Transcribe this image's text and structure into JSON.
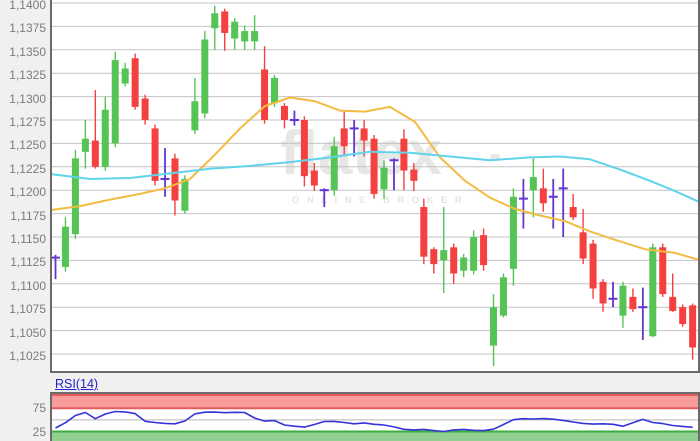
{
  "watermark": {
    "brand": "flatex",
    "tagline": "ONLINE BROKER"
  },
  "indicator": {
    "label": "RSI(14)",
    "period": 14,
    "levels": [
      {
        "label": "75",
        "value": 75
      },
      {
        "label": "25",
        "value": 25
      }
    ]
  },
  "colors": {
    "up": "#55c455",
    "down": "#f54040",
    "doji": "#6334d1",
    "ma_fast": "#f2bb42",
    "ma_slow": "#5fd4ea",
    "rsi_line": "#3434d8",
    "band_red_fill": "#f79b9b",
    "band_red_edge": "#e25c5c",
    "band_green_fill": "#92d092",
    "band_green_edge": "#3fae3f",
    "mid_line": "#b8b8b8",
    "grid": "#c3c3c3",
    "axis_text": "#7b7b7b",
    "border": "#6a6a6a",
    "plot_bg": "#ffffff",
    "page_bg": "#f1f0ee"
  },
  "chart_data": {
    "type": "candlestick",
    "title": "",
    "grid": "horizontal-only",
    "ylim": [
      1.1008,
      1.1405
    ],
    "y_axis": [
      {
        "label": "1,1400",
        "value": 1.14
      },
      {
        "label": "1,1375",
        "value": 1.1375
      },
      {
        "label": "1,1350",
        "value": 1.135
      },
      {
        "label": "1,1325",
        "value": 1.1325
      },
      {
        "label": "1,1300",
        "value": 1.13
      },
      {
        "label": "1,1275",
        "value": 1.1275
      },
      {
        "label": "1,1250",
        "value": 1.125
      },
      {
        "label": "1,1225",
        "value": 1.1225
      },
      {
        "label": "1,1200",
        "value": 1.12
      },
      {
        "label": "1,1175",
        "value": 1.1175
      },
      {
        "label": "1,1150",
        "value": 1.115
      },
      {
        "label": "1,1125",
        "value": 1.1125
      },
      {
        "label": "1,1100",
        "value": 1.11
      },
      {
        "label": "1,1075",
        "value": 1.1075
      },
      {
        "label": "1,1050",
        "value": 1.105
      },
      {
        "label": "1,1025",
        "value": 1.1025
      }
    ],
    "candles": [
      {
        "t": "doji",
        "o": 1.1128,
        "h": 1.1131,
        "l": 1.1105,
        "c": 1.1128
      },
      {
        "t": "up",
        "o": 1.1118,
        "h": 1.1171,
        "l": 1.1113,
        "c": 1.1161
      },
      {
        "t": "up",
        "o": 1.1153,
        "h": 1.1243,
        "l": 1.1148,
        "c": 1.1234
      },
      {
        "t": "up",
        "o": 1.1241,
        "h": 1.1275,
        "l": 1.1223,
        "c": 1.1255
      },
      {
        "t": "down",
        "o": 1.1253,
        "h": 1.1307,
        "l": 1.1223,
        "c": 1.1225
      },
      {
        "t": "up",
        "o": 1.1225,
        "h": 1.13,
        "l": 1.1221,
        "c": 1.1286
      },
      {
        "t": "up",
        "o": 1.125,
        "h": 1.1348,
        "l": 1.1246,
        "c": 1.1339
      },
      {
        "t": "up",
        "o": 1.1314,
        "h": 1.1336,
        "l": 1.1311,
        "c": 1.133
      },
      {
        "t": "down",
        "o": 1.1341,
        "h": 1.1346,
        "l": 1.1286,
        "c": 1.1289
      },
      {
        "t": "down",
        "o": 1.1298,
        "h": 1.1302,
        "l": 1.127,
        "c": 1.1275
      },
      {
        "t": "down",
        "o": 1.1266,
        "h": 1.127,
        "l": 1.1205,
        "c": 1.121
      },
      {
        "t": "doji",
        "o": 1.1212,
        "h": 1.1245,
        "l": 1.1193,
        "c": 1.1212
      },
      {
        "t": "down",
        "o": 1.1234,
        "h": 1.1239,
        "l": 1.1173,
        "c": 1.1189
      },
      {
        "t": "up",
        "o": 1.1178,
        "h": 1.1216,
        "l": 1.1175,
        "c": 1.1212
      },
      {
        "t": "up",
        "o": 1.1264,
        "h": 1.132,
        "l": 1.126,
        "c": 1.1295
      },
      {
        "t": "up",
        "o": 1.1282,
        "h": 1.137,
        "l": 1.1277,
        "c": 1.1361
      },
      {
        "t": "up",
        "o": 1.1373,
        "h": 1.1397,
        "l": 1.135,
        "c": 1.1389
      },
      {
        "t": "down",
        "o": 1.1391,
        "h": 1.1394,
        "l": 1.1349,
        "c": 1.1368
      },
      {
        "t": "up",
        "o": 1.1362,
        "h": 1.1384,
        "l": 1.135,
        "c": 1.138
      },
      {
        "t": "up",
        "o": 1.1359,
        "h": 1.1376,
        "l": 1.135,
        "c": 1.137
      },
      {
        "t": "up",
        "o": 1.1359,
        "h": 1.1387,
        "l": 1.135,
        "c": 1.137
      },
      {
        "t": "down",
        "o": 1.1329,
        "h": 1.1354,
        "l": 1.1271,
        "c": 1.1275
      },
      {
        "t": "up",
        "o": 1.1293,
        "h": 1.1323,
        "l": 1.1289,
        "c": 1.132
      },
      {
        "t": "down",
        "o": 1.129,
        "h": 1.1293,
        "l": 1.1266,
        "c": 1.1275
      },
      {
        "t": "doji",
        "o": 1.1275,
        "h": 1.1285,
        "l": 1.1269,
        "c": 1.1275
      },
      {
        "t": "down",
        "o": 1.1275,
        "h": 1.1279,
        "l": 1.1204,
        "c": 1.1215
      },
      {
        "t": "down",
        "o": 1.1221,
        "h": 1.1229,
        "l": 1.1199,
        "c": 1.1205
      },
      {
        "t": "doji",
        "o": 1.12,
        "h": 1.1202,
        "l": 1.1182,
        "c": 1.12
      },
      {
        "t": "up",
        "o": 1.12,
        "h": 1.1257,
        "l": 1.1194,
        "c": 1.1247
      },
      {
        "t": "down",
        "o": 1.1266,
        "h": 1.1284,
        "l": 1.1236,
        "c": 1.1247
      },
      {
        "t": "doji",
        "o": 1.1266,
        "h": 1.1275,
        "l": 1.1236,
        "c": 1.1266
      },
      {
        "t": "down",
        "o": 1.1266,
        "h": 1.1275,
        "l": 1.1236,
        "c": 1.1253
      },
      {
        "t": "down",
        "o": 1.1255,
        "h": 1.1259,
        "l": 1.1191,
        "c": 1.1196
      },
      {
        "t": "up",
        "o": 1.1201,
        "h": 1.1232,
        "l": 1.1191,
        "c": 1.1224
      },
      {
        "t": "doji",
        "o": 1.1232,
        "h": 1.1234,
        "l": 1.12,
        "c": 1.1232
      },
      {
        "t": "down",
        "o": 1.1255,
        "h": 1.1265,
        "l": 1.12,
        "c": 1.1221
      },
      {
        "t": "down",
        "o": 1.1222,
        "h": 1.1229,
        "l": 1.1199,
        "c": 1.121
      },
      {
        "t": "down",
        "o": 1.1182,
        "h": 1.1191,
        "l": 1.1121,
        "c": 1.1129
      },
      {
        "t": "down",
        "o": 1.1137,
        "h": 1.1139,
        "l": 1.1111,
        "c": 1.1121
      },
      {
        "t": "up",
        "o": 1.1125,
        "h": 1.1182,
        "l": 1.109,
        "c": 1.1136
      },
      {
        "t": "down",
        "o": 1.1139,
        "h": 1.1143,
        "l": 1.11,
        "c": 1.1111
      },
      {
        "t": "up",
        "o": 1.1114,
        "h": 1.1132,
        "l": 1.1107,
        "c": 1.1128
      },
      {
        "t": "up",
        "o": 1.1114,
        "h": 1.1157,
        "l": 1.111,
        "c": 1.115
      },
      {
        "t": "down",
        "o": 1.1152,
        "h": 1.1159,
        "l": 1.1114,
        "c": 1.112
      },
      {
        "t": "up",
        "o": 1.1034,
        "h": 1.1089,
        "l": 1.1012,
        "c": 1.1075
      },
      {
        "t": "up",
        "o": 1.1066,
        "h": 1.1111,
        "l": 1.1064,
        "c": 1.1107
      },
      {
        "t": "up",
        "o": 1.1116,
        "h": 1.1202,
        "l": 1.1098,
        "c": 1.1193
      },
      {
        "t": "doji",
        "o": 1.1191,
        "h": 1.1212,
        "l": 1.1159,
        "c": 1.1191
      },
      {
        "t": "up",
        "o": 1.12,
        "h": 1.1234,
        "l": 1.1171,
        "c": 1.1214
      },
      {
        "t": "down",
        "o": 1.1202,
        "h": 1.1223,
        "l": 1.1177,
        "c": 1.1186
      },
      {
        "t": "doji",
        "o": 1.1193,
        "h": 1.1212,
        "l": 1.1159,
        "c": 1.1193
      },
      {
        "t": "doji",
        "o": 1.1202,
        "h": 1.1223,
        "l": 1.115,
        "c": 1.1202
      },
      {
        "t": "down",
        "o": 1.1182,
        "h": 1.1196,
        "l": 1.1168,
        "c": 1.1171
      },
      {
        "t": "down",
        "o": 1.1155,
        "h": 1.118,
        "l": 1.1121,
        "c": 1.1127
      },
      {
        "t": "down",
        "o": 1.1143,
        "h": 1.1147,
        "l": 1.1084,
        "c": 1.1095
      },
      {
        "t": "down",
        "o": 1.1102,
        "h": 1.1105,
        "l": 1.107,
        "c": 1.1079
      },
      {
        "t": "doji",
        "o": 1.1084,
        "h": 1.1102,
        "l": 1.1075,
        "c": 1.1084
      },
      {
        "t": "up",
        "o": 1.1066,
        "h": 1.1102,
        "l": 1.1053,
        "c": 1.1098
      },
      {
        "t": "down",
        "o": 1.1086,
        "h": 1.1095,
        "l": 1.107,
        "c": 1.1073
      },
      {
        "t": "doji",
        "o": 1.1075,
        "h": 1.1096,
        "l": 1.104,
        "c": 1.1075
      },
      {
        "t": "up",
        "o": 1.1044,
        "h": 1.1143,
        "l": 1.1043,
        "c": 1.1139
      },
      {
        "t": "down",
        "o": 1.1139,
        "h": 1.1143,
        "l": 1.1086,
        "c": 1.1089
      },
      {
        "t": "down",
        "o": 1.1086,
        "h": 1.1111,
        "l": 1.107,
        "c": 1.1071
      },
      {
        "t": "down",
        "o": 1.1075,
        "h": 1.1078,
        "l": 1.1054,
        "c": 1.1057
      },
      {
        "t": "down",
        "o": 1.1077,
        "h": 1.1079,
        "l": 1.1019,
        "c": 1.1032
      }
    ],
    "overlays": [
      {
        "name": "ma-fast-orange",
        "color_key": "ma_fast",
        "points": [
          [
            0,
            1.1179
          ],
          [
            28,
            1.1183
          ],
          [
            58,
            1.119
          ],
          [
            88,
            1.1196
          ],
          [
            113,
            1.1202
          ],
          [
            138,
            1.1212
          ],
          [
            163,
            1.1238
          ],
          [
            188,
            1.1266
          ],
          [
            213,
            1.129
          ],
          [
            238,
            1.1299
          ],
          [
            263,
            1.1295
          ],
          [
            288,
            1.1285
          ],
          [
            313,
            1.1284
          ],
          [
            338,
            1.1289
          ],
          [
            363,
            1.1273
          ],
          [
            388,
            1.1235
          ],
          [
            413,
            1.121
          ],
          [
            438,
            1.1192
          ],
          [
            463,
            1.118
          ],
          [
            488,
            1.1173
          ],
          [
            513,
            1.1167
          ],
          [
            538,
            1.1156
          ],
          [
            563,
            1.1147
          ],
          [
            593,
            1.1137
          ],
          [
            623,
            1.1133
          ],
          [
            646,
            1.1126
          ]
        ]
      },
      {
        "name": "ma-slow-cyan",
        "color_key": "ma_slow",
        "points": [
          [
            0,
            1.1217
          ],
          [
            38,
            1.1212
          ],
          [
            78,
            1.1213
          ],
          [
            118,
            1.1218
          ],
          [
            158,
            1.1223
          ],
          [
            198,
            1.1226
          ],
          [
            238,
            1.123
          ],
          [
            278,
            1.1235
          ],
          [
            318,
            1.1241
          ],
          [
            358,
            1.124
          ],
          [
            398,
            1.1236
          ],
          [
            438,
            1.1232
          ],
          [
            478,
            1.1235
          ],
          [
            508,
            1.1236
          ],
          [
            538,
            1.1233
          ],
          [
            568,
            1.1222
          ],
          [
            598,
            1.121
          ],
          [
            623,
            1.1199
          ],
          [
            646,
            1.1188
          ]
        ]
      }
    ],
    "rsi": {
      "type": "line",
      "period": 14,
      "overbought": 75,
      "oversold": 25,
      "values": [
        32.5,
        44,
        59.5,
        66,
        52.5,
        62.7,
        68,
        67.3,
        63.5,
        47,
        44.5,
        42.5,
        41.5,
        47.7,
        63,
        66.5,
        66.8,
        65.5,
        66.3,
        66,
        54,
        47.5,
        48.5,
        39,
        36.5,
        34.5,
        40,
        46.5,
        46.8,
        44.5,
        41.5,
        43.5,
        40.5,
        39,
        35,
        29.7,
        28.5,
        29.5,
        27,
        25,
        28.5,
        29.5,
        27.5,
        27,
        30,
        40,
        50.5,
        52.5,
        52,
        52.8,
        51.5,
        49,
        45.5,
        42.5,
        41,
        41.5,
        40.5,
        36.5,
        44,
        51,
        44.5,
        42,
        38,
        36,
        34
      ]
    }
  }
}
